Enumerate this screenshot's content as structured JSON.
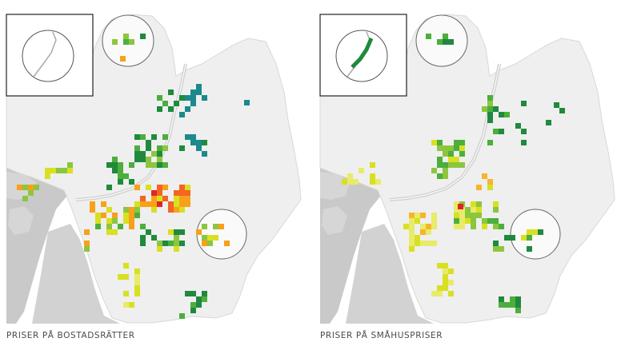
{
  "maps": [
    {
      "caption": "PRISER PÅ BOSTADSRÄTTER",
      "colors": {
        "teal": "#1a8a8c",
        "dkgreen": "#1f8a3d",
        "green": "#4caf3c",
        "ltgreen": "#8cc63f",
        "yellow": "#d9e021",
        "ltyellow": "#e8eb6a",
        "orange": "#f7a11a",
        "dkorange": "#f26522",
        "red": "#e02424"
      }
    },
    {
      "caption": "PRISER PÅ SMÅHUSPRISER",
      "colors": {
        "dkgreen": "#1f8a3d",
        "green": "#4caf3c",
        "ltgreen": "#8cc63f",
        "yellow": "#d9e021",
        "ltyellow": "#e8eb6a",
        "orange": "#f7b52a",
        "red": "#e02424"
      }
    }
  ]
}
